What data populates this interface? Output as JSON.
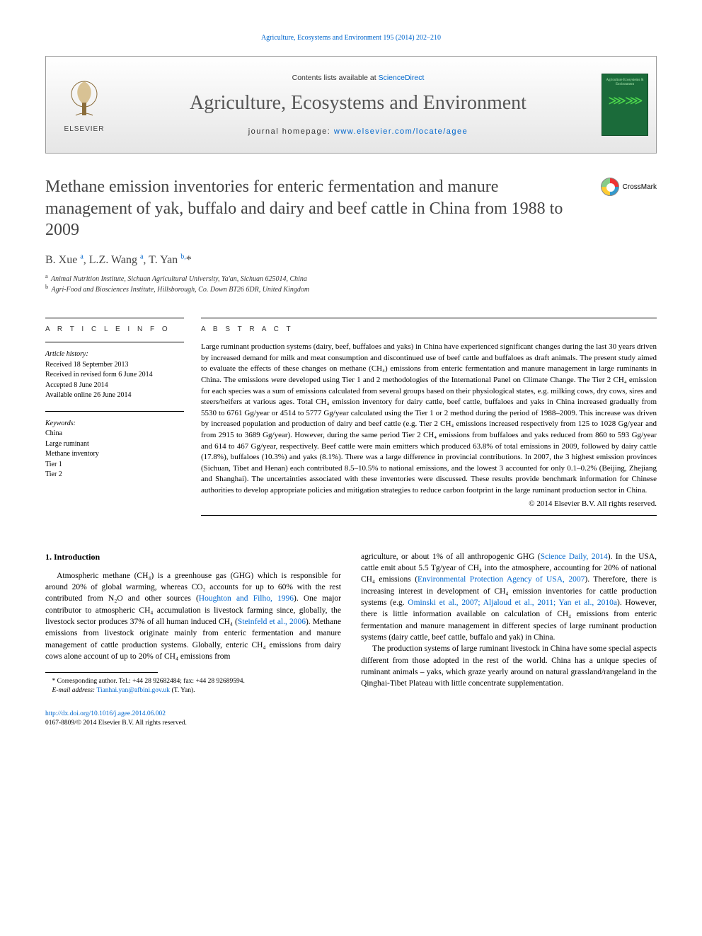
{
  "running_header": "Agriculture, Ecosystems and Environment 195 (2014) 202–210",
  "masthead": {
    "contents_prefix": "Contents lists available at ",
    "contents_link": "ScienceDirect",
    "journal_title": "Agriculture, Ecosystems and Environment",
    "homepage_label": "journal homepage: ",
    "homepage_url": "www.elsevier.com/locate/agee",
    "publisher_label": "ELSEVIER",
    "cover_text": "Agriculture Ecosystems & Environment"
  },
  "article": {
    "title": "Methane emission inventories for enteric fermentation and manure management of yak, buffalo and dairy and beef cattle in China from 1988 to 2009",
    "crossmark_label": "CrossMark",
    "authors_html": "B. Xue <sup>a</sup>, L.Z. Wang <sup>a</sup>, T. Yan <sup>b,</sup>*",
    "affiliations": [
      {
        "marker": "a",
        "text": "Animal Nutrition Institute, Sichuan Agricultural University, Ya'an, Sichuan 625014, China"
      },
      {
        "marker": "b",
        "text": "Agri-Food and Biosciences Institute, Hillsborough, Co. Down BT26 6DR, United Kingdom"
      }
    ]
  },
  "article_info": {
    "label": "A R T I C L E   I N F O",
    "history_head": "Article history:",
    "history": [
      "Received 18 September 2013",
      "Received in revised form 6 June 2014",
      "Accepted 8 June 2014",
      "Available online 26 June 2014"
    ],
    "keywords_head": "Keywords:",
    "keywords": [
      "China",
      "Large ruminant",
      "Methane inventory",
      "Tier 1",
      "Tier 2"
    ]
  },
  "abstract": {
    "label": "A B S T R A C T",
    "text": "Large ruminant production systems (dairy, beef, buffaloes and yaks) in China have experienced significant changes during the last 30 years driven by increased demand for milk and meat consumption and discontinued use of beef cattle and buffaloes as draft animals. The present study aimed to evaluate the effects of these changes on methane (CH₄) emissions from enteric fermentation and manure management in large ruminants in China. The emissions were developed using Tier 1 and 2 methodologies of the International Panel on Climate Change. The Tier 2 CH₄ emission for each species was a sum of emissions calculated from several groups based on their physiological states, e.g. milking cows, dry cows, sires and steers/heifers at various ages. Total CH₄ emission inventory for dairy cattle, beef cattle, buffaloes and yaks in China increased gradually from 5530 to 6761 Gg/year or 4514 to 5777 Gg/year calculated using the Tier 1 or 2 method during the period of 1988–2009. This increase was driven by increased population and production of dairy and beef cattle (e.g. Tier 2 CH₄ emissions increased respectively from 125 to 1028 Gg/year and from 2915 to 3689 Gg/year). However, during the same period Tier 2 CH₄ emissions from buffaloes and yaks reduced from 860 to 593 Gg/year and 614 to 467 Gg/year, respectively. Beef cattle were main emitters which produced 63.8% of total emissions in 2009, followed by dairy cattle (17.8%), buffaloes (10.3%) and yaks (8.1%). There was a large difference in provincial contributions. In 2007, the 3 highest emission provinces (Sichuan, Tibet and Henan) each contributed 8.5–10.5% to national emissions, and the lowest 3 accounted for only 0.1–0.2% (Beijing, Zhejiang and Shanghai). The uncertainties associated with these inventories were discussed. These results provide benchmark information for Chinese authorities to develop appropriate policies and mitigation strategies to reduce carbon footprint in the large ruminant production sector in China.",
    "copyright": "© 2014 Elsevier B.V. All rights reserved."
  },
  "body": {
    "section_heading": "1. Introduction",
    "p1_pre": "Atmospheric methane (CH₄) is a greenhouse gas (GHG) which is responsible for around 20% of global warming, whereas CO₂ accounts for up to 60% with the rest contributed from N₂O and other sources (",
    "p1_cite1": "Houghton and Filho, 1996",
    "p1_mid": "). One major contributor to atmospheric CH₄ accumulation is livestock farming since, globally, the livestock sector produces 37% of all human induced CH₄ (",
    "p1_cite2": "Steinfeld et al., 2006",
    "p1_end": "). Methane emissions from livestock originate mainly from enteric fermentation and manure management of cattle production systems. Globally, enteric CH₄ emissions from dairy cows alone account of up to 20% of CH₄ emissions from",
    "p2_pre": "agriculture, or about 1% of all anthropogenic GHG (",
    "p2_cite1": "Science Daily, 2014",
    "p2_mid1": "). In the USA, cattle emit about 5.5 Tg/year of CH₄ into the atmosphere, accounting for 20% of national CH₄ emissions (",
    "p2_cite2": "Environmental Protection Agency of USA, 2007",
    "p2_mid2": "). Therefore, there is increasing interest in development of CH₄ emission inventories for cattle production systems (e.g. ",
    "p2_cite3": "Ominski et al., 2007; Aljaloud et al., 2011; Yan et al., 2010a",
    "p2_end": "). However, there is little information available on calculation of CH₄ emissions from enteric fermentation and manure management in different species of large ruminant production systems (dairy cattle, beef cattle, buffalo and yak) in China.",
    "p3": "The production systems of large ruminant livestock in China have some special aspects different from those adopted in the rest of the world. China has a unique species of ruminant animals – yaks, which graze yearly around on natural grassland/rangeland in the Qinghai-Tibet Plateau with little concentrate supplementation."
  },
  "corresponding": {
    "label": "* Corresponding author. Tel.: +44 28 92682484; fax: +44 28 92689594.",
    "email_label": "E-mail address: ",
    "email": "Tianhai.yan@afbini.gov.uk",
    "email_who": " (T.  Yan)."
  },
  "footer": {
    "doi": "http://dx.doi.org/10.1016/j.agee.2014.06.002",
    "issn_line": "0167-8809/© 2014 Elsevier B.V. All rights reserved."
  },
  "colors": {
    "link": "#0066cc",
    "heading": "#444444",
    "text": "#000000"
  }
}
